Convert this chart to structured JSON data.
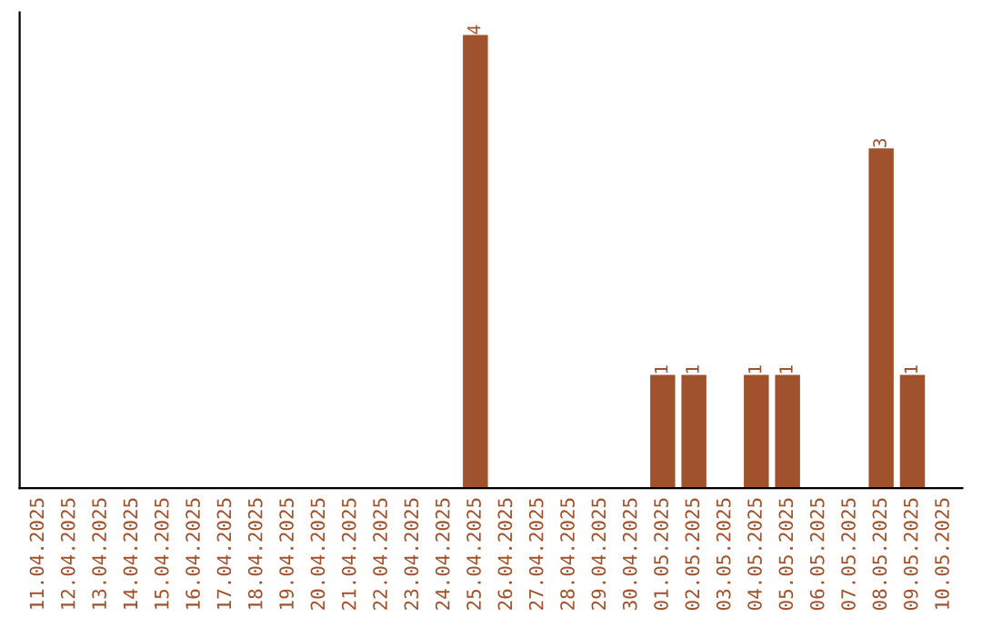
{
  "chart_data": {
    "type": "bar",
    "categories": [
      "11.04.2025",
      "12.04.2025",
      "13.04.2025",
      "14.04.2025",
      "15.04.2025",
      "16.04.2025",
      "17.04.2025",
      "18.04.2025",
      "19.04.2025",
      "20.04.2025",
      "21.04.2025",
      "22.04.2025",
      "23.04.2025",
      "24.04.2025",
      "25.04.2025",
      "26.04.2025",
      "27.04.2025",
      "28.04.2025",
      "29.04.2025",
      "30.04.2025",
      "01.05.2025",
      "02.05.2025",
      "03.05.2025",
      "04.05.2025",
      "05.05.2025",
      "06.05.2025",
      "07.05.2025",
      "08.05.2025",
      "09.05.2025",
      "10.05.2025"
    ],
    "values": [
      null,
      null,
      null,
      null,
      null,
      null,
      null,
      null,
      null,
      null,
      null,
      null,
      null,
      null,
      4,
      null,
      null,
      null,
      null,
      null,
      1,
      1,
      null,
      1,
      1,
      null,
      null,
      3,
      1,
      null
    ],
    "value_labels": [
      null,
      null,
      null,
      null,
      null,
      null,
      null,
      null,
      null,
      null,
      null,
      null,
      null,
      null,
      "4",
      null,
      null,
      null,
      null,
      null,
      "1",
      "1",
      null,
      "1",
      "1",
      null,
      null,
      "3",
      "1",
      null
    ],
    "color": "#a0522d",
    "tick_labels": "x",
    "grid": false,
    "legend": false
  }
}
